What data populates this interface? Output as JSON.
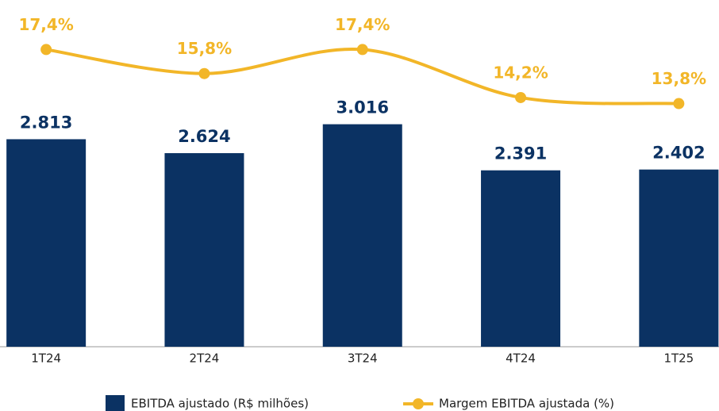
{
  "chart_data": {
    "type": "bar",
    "categories": [
      "1T24",
      "2T24",
      "3T24",
      "4T24",
      "1T25"
    ],
    "series": [
      {
        "name": "EBITDA ajustado (R$ milhões)",
        "type": "bar",
        "color": "#0b3263",
        "values": [
          2813,
          2624,
          3016,
          2391,
          2402
        ],
        "value_labels": [
          "2.813",
          "2.624",
          "3.016",
          "2.391",
          "2.402"
        ]
      },
      {
        "name": "Margem EBITDA ajustada (%)",
        "type": "line",
        "axis": "y2",
        "color": "#f2b628",
        "values": [
          17.4,
          15.8,
          17.4,
          14.2,
          13.8
        ],
        "value_labels": [
          "17,4%",
          "15,8%",
          "17,4%",
          "14,2%",
          "13,8%"
        ]
      }
    ],
    "ylim": [
      0,
      4700
    ],
    "y2lim": [
      -2.4,
      20.7
    ],
    "legend": "bottom"
  }
}
